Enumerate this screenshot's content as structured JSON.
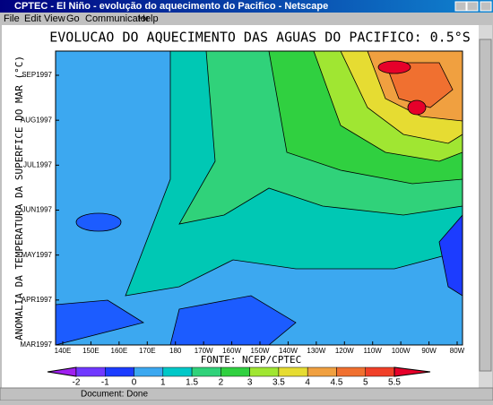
{
  "window": {
    "title": "CPTEC - El Niño - evolução do aquecimento do Pacifico - Netscape",
    "menu": [
      "File",
      "Edit",
      "View",
      "Go",
      "Communicator",
      "Help"
    ],
    "status": "Document: Done"
  },
  "figure": {
    "title": "EVOLUCAO DO AQUECIMENTO DAS AGUAS DO PACIFICO: 0.5°S",
    "y_label": "ANOMALIA DA TEMPERATURA DA SUPERFICE DO MAR (°C)",
    "y_ticks": [
      "SEP1997",
      "AUG1997",
      "JUL1997",
      "JUN1997",
      "MAY1997",
      "APR1997",
      "MAR1997"
    ],
    "x_ticks": [
      "140E",
      "150E",
      "160E",
      "170E",
      "180",
      "170W",
      "160W",
      "150W",
      "140W",
      "130W",
      "120W",
      "110W",
      "100W",
      "90W",
      "80W"
    ],
    "source": "FONTE: NCEP/CPTEC",
    "colorbar_labels": [
      "-2",
      "-1",
      "0",
      "1",
      "1.5",
      "2",
      "3",
      "3.5",
      "4",
      "4.5",
      "5",
      "5.5"
    ]
  }
}
